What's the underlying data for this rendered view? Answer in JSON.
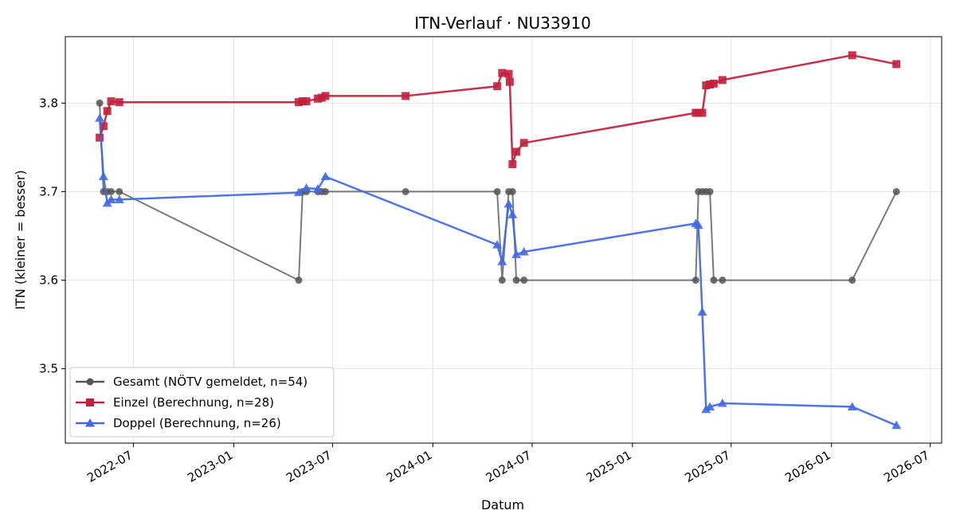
{
  "chart_data": {
    "type": "line",
    "title": "ITN-Verlauf · NU33910",
    "xlabel": "Datum",
    "ylabel": "ITN  (kleiner = besser)",
    "x_type": "date",
    "xlim": [
      "2022-02-26",
      "2026-07-22"
    ],
    "ylim": [
      3.416,
      3.875
    ],
    "x_ticks": [
      "2022-07-01",
      "2023-01-01",
      "2023-07-01",
      "2024-01-01",
      "2024-07-01",
      "2025-01-01",
      "2025-07-01",
      "2026-01-01",
      "2026-07-01"
    ],
    "x_tick_labels": [
      "2022-07",
      "2023-01",
      "2023-07",
      "2024-01",
      "2024-07",
      "2025-01",
      "2025-07",
      "2026-01",
      "2026-07"
    ],
    "y_ticks": [
      3.5,
      3.6,
      3.7,
      3.8
    ],
    "y_tick_labels": [
      "3.5",
      "3.6",
      "3.7",
      "3.8"
    ],
    "grid": true,
    "legend_position": "lower-left",
    "series": [
      {
        "name": "Gesamt (NÖTV gemeldet, n=54)",
        "color": "#555555",
        "marker": "circle",
        "points": [
          [
            "2022-04-30",
            3.8
          ],
          [
            "2022-05-07",
            3.7
          ],
          [
            "2022-05-14",
            3.7
          ],
          [
            "2022-05-21",
            3.7
          ],
          [
            "2022-06-05",
            3.7
          ],
          [
            "2023-04-30",
            3.6
          ],
          [
            "2023-05-07",
            3.7
          ],
          [
            "2023-05-14",
            3.7
          ],
          [
            "2023-06-04",
            3.7
          ],
          [
            "2023-06-11",
            3.7
          ],
          [
            "2023-06-18",
            3.7
          ],
          [
            "2023-11-12",
            3.7
          ],
          [
            "2024-04-28",
            3.7
          ],
          [
            "2024-05-07",
            3.6
          ],
          [
            "2024-05-19",
            3.7
          ],
          [
            "2024-05-26",
            3.7
          ],
          [
            "2024-06-02",
            3.6
          ],
          [
            "2024-06-16",
            3.6
          ],
          [
            "2025-04-27",
            3.6
          ],
          [
            "2025-05-02",
            3.7
          ],
          [
            "2025-05-09",
            3.7
          ],
          [
            "2025-05-16",
            3.7
          ],
          [
            "2025-05-23",
            3.7
          ],
          [
            "2025-05-30",
            3.6
          ],
          [
            "2025-06-15",
            3.6
          ],
          [
            "2026-02-08",
            3.6
          ],
          [
            "2026-04-30",
            3.7
          ]
        ]
      },
      {
        "name": "Einzel (Berechnung, n=28)",
        "color": "#c0203c",
        "marker": "square",
        "points": [
          [
            "2022-04-30",
            3.761
          ],
          [
            "2022-05-07",
            3.774
          ],
          [
            "2022-05-14",
            3.791
          ],
          [
            "2022-05-21",
            3.802
          ],
          [
            "2022-06-05",
            3.801
          ],
          [
            "2023-04-30",
            3.801
          ],
          [
            "2023-05-07",
            3.802
          ],
          [
            "2023-05-14",
            3.802
          ],
          [
            "2023-06-04",
            3.805
          ],
          [
            "2023-06-11",
            3.806
          ],
          [
            "2023-06-18",
            3.808
          ],
          [
            "2023-11-12",
            3.808
          ],
          [
            "2024-04-28",
            3.819
          ],
          [
            "2024-05-07",
            3.834
          ],
          [
            "2024-05-19",
            3.833
          ],
          [
            "2024-05-21",
            3.824
          ],
          [
            "2024-05-26",
            3.731
          ],
          [
            "2024-06-02",
            3.745
          ],
          [
            "2024-06-16",
            3.755
          ],
          [
            "2025-04-27",
            3.789
          ],
          [
            "2025-05-02",
            3.789
          ],
          [
            "2025-05-09",
            3.789
          ],
          [
            "2025-05-16",
            3.82
          ],
          [
            "2025-05-23",
            3.821
          ],
          [
            "2025-05-30",
            3.822
          ],
          [
            "2025-06-15",
            3.826
          ],
          [
            "2026-02-08",
            3.854
          ],
          [
            "2026-04-30",
            3.844
          ]
        ]
      },
      {
        "name": "Doppel (Berechnung, n=26)",
        "color": "#4169e1",
        "marker": "triangle",
        "points": [
          [
            "2022-04-30",
            3.783
          ],
          [
            "2022-05-07",
            3.717
          ],
          [
            "2022-05-14",
            3.687
          ],
          [
            "2022-05-21",
            3.691
          ],
          [
            "2022-06-05",
            3.691
          ],
          [
            "2023-04-30",
            3.699
          ],
          [
            "2023-05-14",
            3.704
          ],
          [
            "2023-06-04",
            3.703
          ],
          [
            "2023-06-18",
            3.717
          ],
          [
            "2024-04-28",
            3.64
          ],
          [
            "2024-05-07",
            3.621
          ],
          [
            "2024-05-19",
            3.686
          ],
          [
            "2024-05-26",
            3.674
          ],
          [
            "2024-06-02",
            3.629
          ],
          [
            "2024-06-16",
            3.632
          ],
          [
            "2025-04-27",
            3.664
          ],
          [
            "2025-05-02",
            3.662
          ],
          [
            "2025-05-09",
            3.564
          ],
          [
            "2025-05-16",
            3.454
          ],
          [
            "2025-05-23",
            3.457
          ],
          [
            "2025-06-15",
            3.461
          ],
          [
            "2026-02-08",
            3.457
          ],
          [
            "2026-04-30",
            3.436
          ]
        ]
      }
    ]
  }
}
